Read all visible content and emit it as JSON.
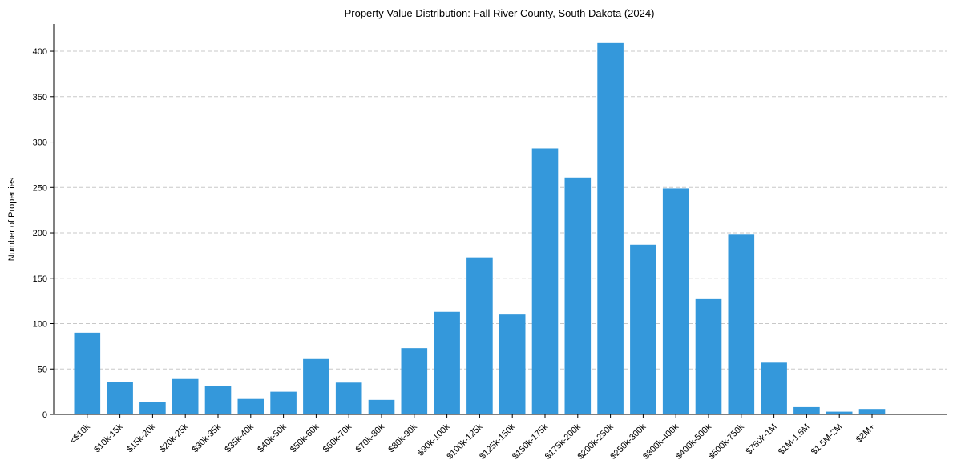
{
  "colors": {
    "bar": "#3498db",
    "grid": "#c8c8c8",
    "axis": "#000000",
    "background": "#ffffff"
  },
  "chart_data": {
    "type": "bar",
    "title": "Property Value Distribution: Fall River County, South Dakota (2024)",
    "xlabel": "",
    "ylabel": "Number of Properties",
    "ylim": [
      0,
      430
    ],
    "yticks": [
      0,
      50,
      100,
      150,
      200,
      250,
      300,
      350,
      400
    ],
    "grid": "y-dashed",
    "legend": "none",
    "categories": [
      "<$10k",
      "$10k-15k",
      "$15k-20k",
      "$20k-25k",
      "$30k-35k",
      "$35k-40k",
      "$40k-50k",
      "$50k-60k",
      "$60k-70k",
      "$70k-80k",
      "$80k-90k",
      "$90k-100k",
      "$100k-125k",
      "$125k-150k",
      "$150k-175k",
      "$175k-200k",
      "$200k-250k",
      "$250k-300k",
      "$300k-400k",
      "$400k-500k",
      "$500k-750k",
      "$750k-1M",
      "$1M-1.5M",
      "$1.5M-2M",
      "$2M+"
    ],
    "values": [
      90,
      36,
      14,
      39,
      31,
      17,
      25,
      61,
      35,
      16,
      73,
      113,
      173,
      110,
      293,
      261,
      409,
      187,
      249,
      127,
      198,
      57,
      8,
      3,
      6
    ]
  }
}
